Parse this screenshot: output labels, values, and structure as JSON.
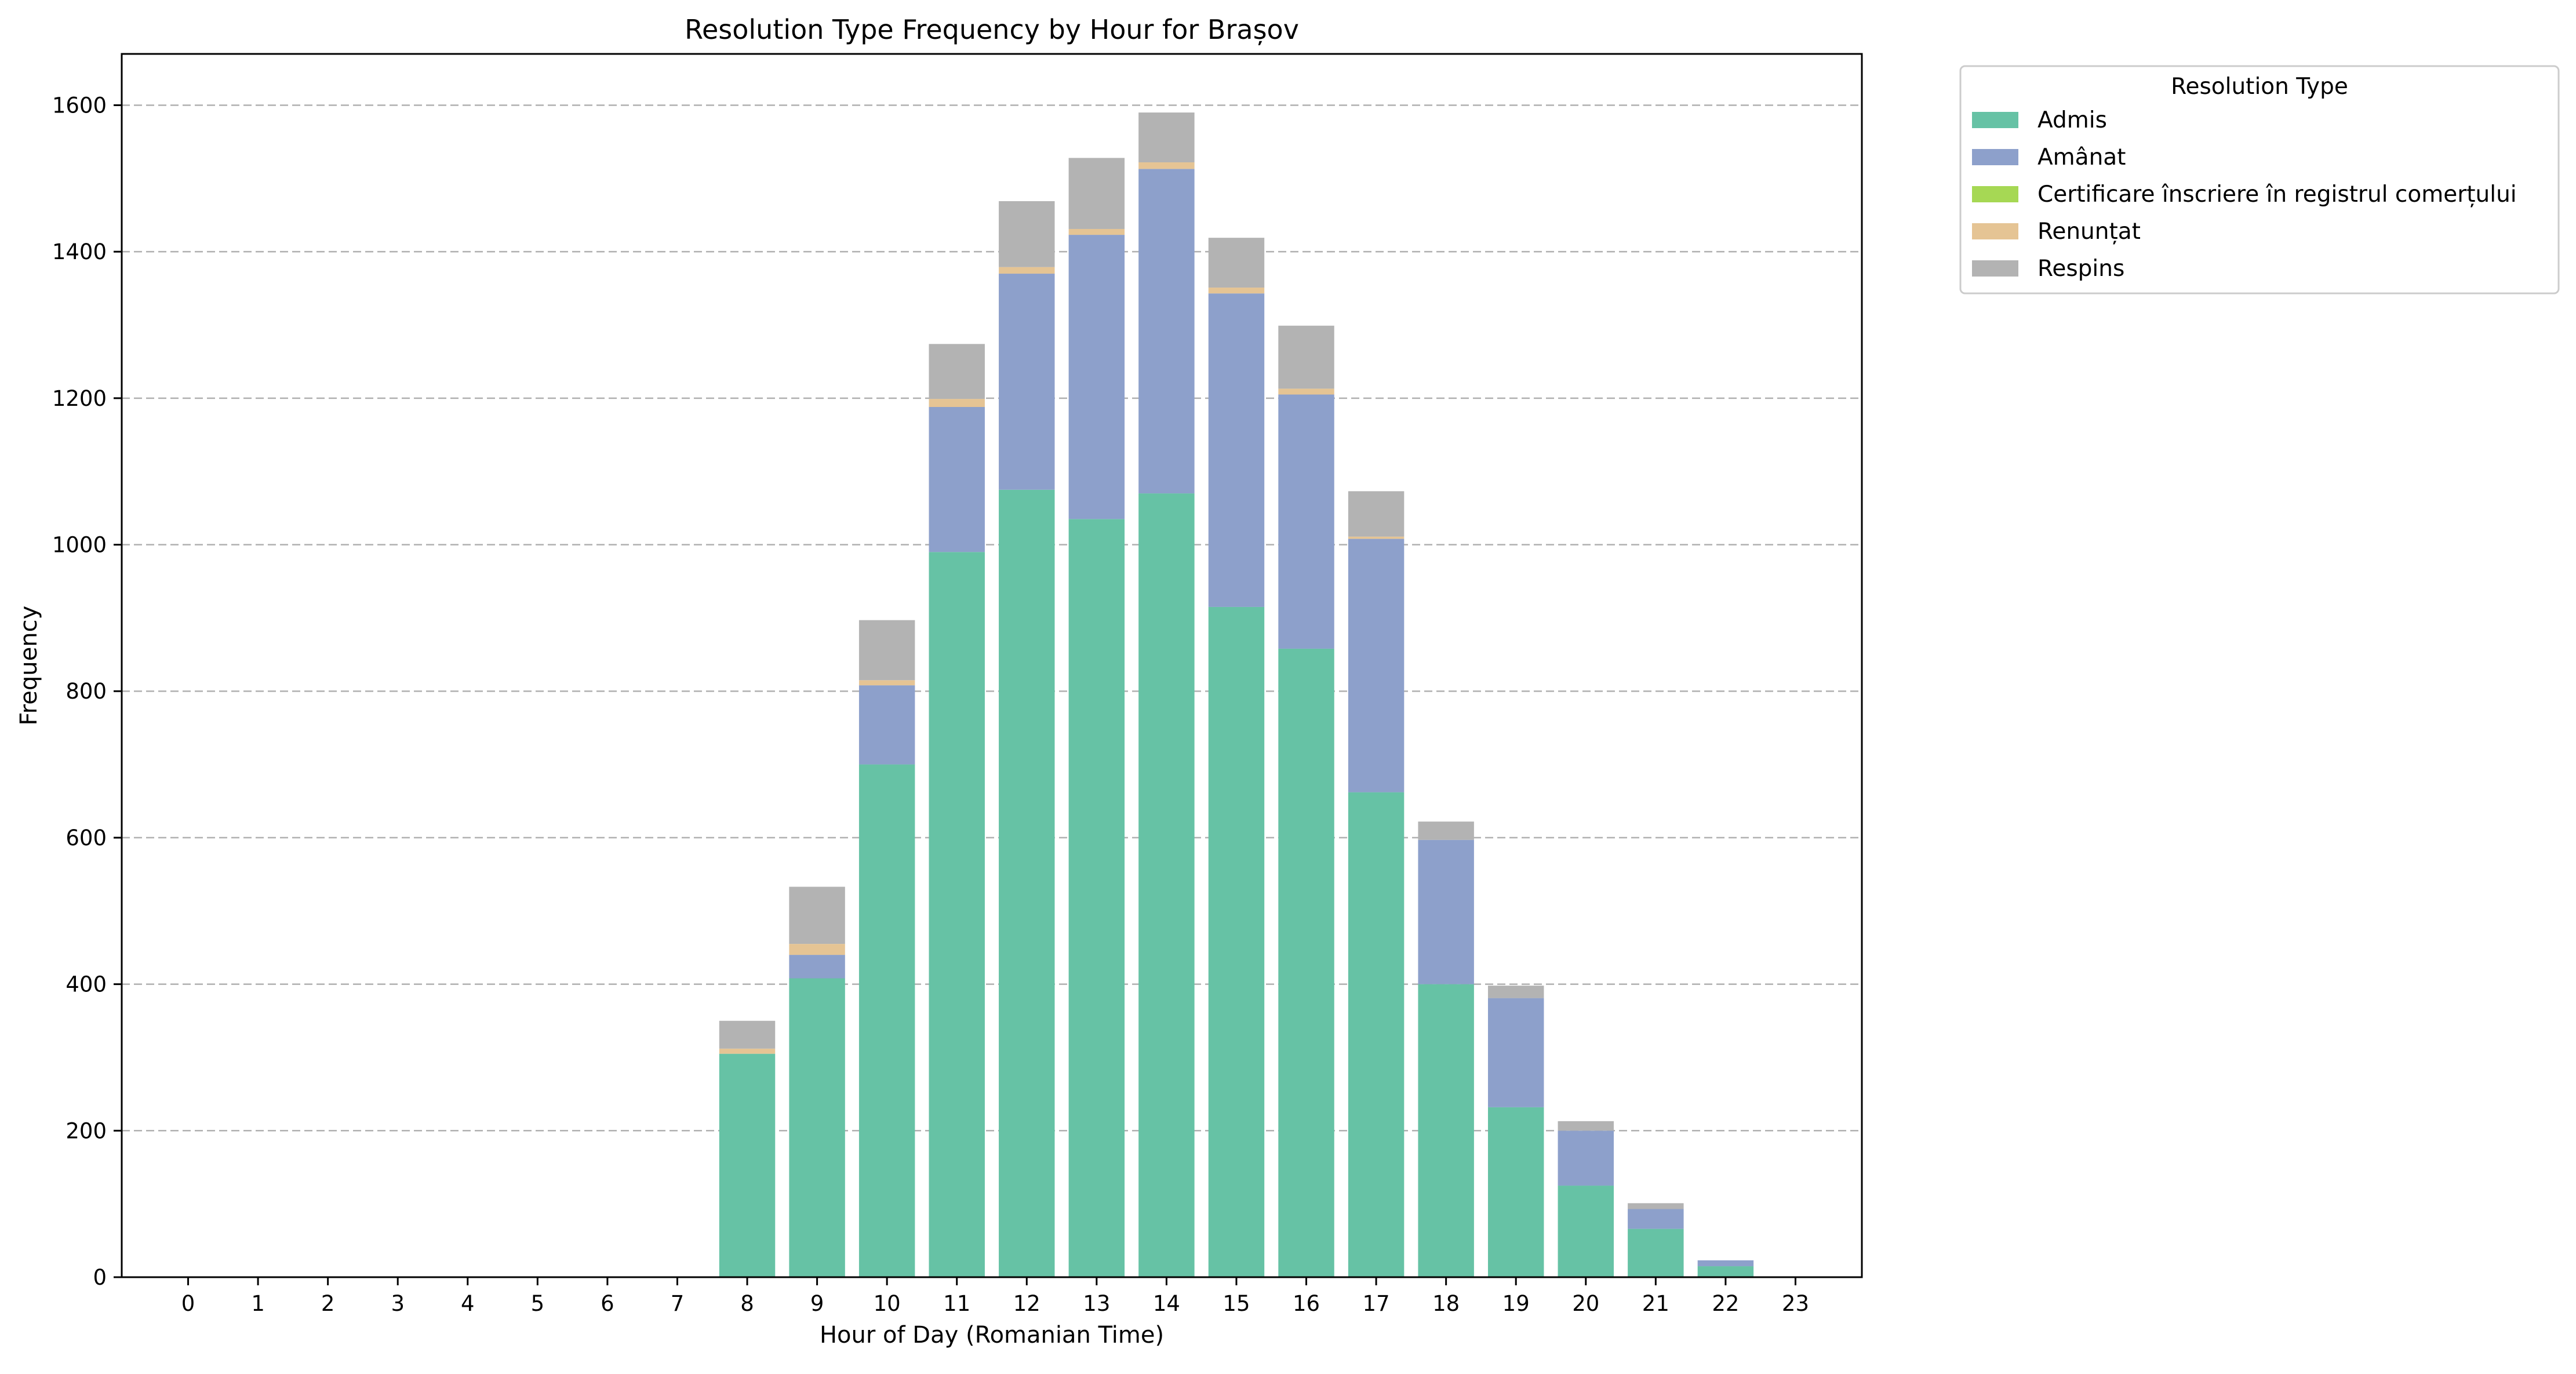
{
  "chart_data": {
    "type": "bar",
    "stacked": true,
    "title": "Resolution Type Frequency by Hour for Brașov",
    "xlabel": "Hour of Day (Romanian Time)",
    "ylabel": "Frequency",
    "ylim": [
      0,
      1670
    ],
    "yticks": [
      0,
      200,
      400,
      600,
      800,
      1000,
      1200,
      1400,
      1600
    ],
    "grid": "y-dashed",
    "legend_title": "Resolution Type",
    "legend_placement": "outside-top-right",
    "categories": [
      "0",
      "1",
      "2",
      "3",
      "4",
      "5",
      "6",
      "7",
      "8",
      "9",
      "10",
      "11",
      "12",
      "13",
      "14",
      "15",
      "16",
      "17",
      "18",
      "19",
      "20",
      "21",
      "22",
      "23"
    ],
    "series": [
      {
        "name": "Admis",
        "color": "#66c2a5",
        "values": [
          0,
          0,
          0,
          0,
          0,
          0,
          0,
          0,
          305,
          408,
          700,
          990,
          1075,
          1035,
          1070,
          915,
          858,
          662,
          400,
          232,
          125,
          66,
          15,
          0
        ]
      },
      {
        "name": "Amânat",
        "color": "#8da0cb",
        "values": [
          0,
          0,
          0,
          0,
          0,
          0,
          0,
          0,
          0,
          32,
          108,
          198,
          295,
          388,
          443,
          428,
          347,
          346,
          197,
          149,
          75,
          27,
          8,
          0
        ]
      },
      {
        "name": "Certificare înscriere în registrul comerțului",
        "color": "#a6d854",
        "values": [
          0,
          0,
          0,
          0,
          0,
          0,
          0,
          0,
          0,
          0,
          0,
          0,
          0,
          0,
          0,
          0,
          0,
          0,
          0,
          0,
          0,
          0,
          0,
          0
        ]
      },
      {
        "name": "Renunțat",
        "color": "#e5c494",
        "values": [
          0,
          0,
          0,
          0,
          0,
          0,
          0,
          0,
          7,
          15,
          7,
          11,
          9,
          8,
          9,
          8,
          8,
          3,
          0,
          0,
          0,
          0,
          0,
          0
        ]
      },
      {
        "name": "Respins",
        "color": "#b3b3b3",
        "values": [
          0,
          0,
          0,
          0,
          0,
          0,
          0,
          0,
          38,
          78,
          82,
          75,
          90,
          97,
          68,
          68,
          86,
          62,
          25,
          17,
          13,
          8,
          0,
          0
        ]
      }
    ]
  }
}
